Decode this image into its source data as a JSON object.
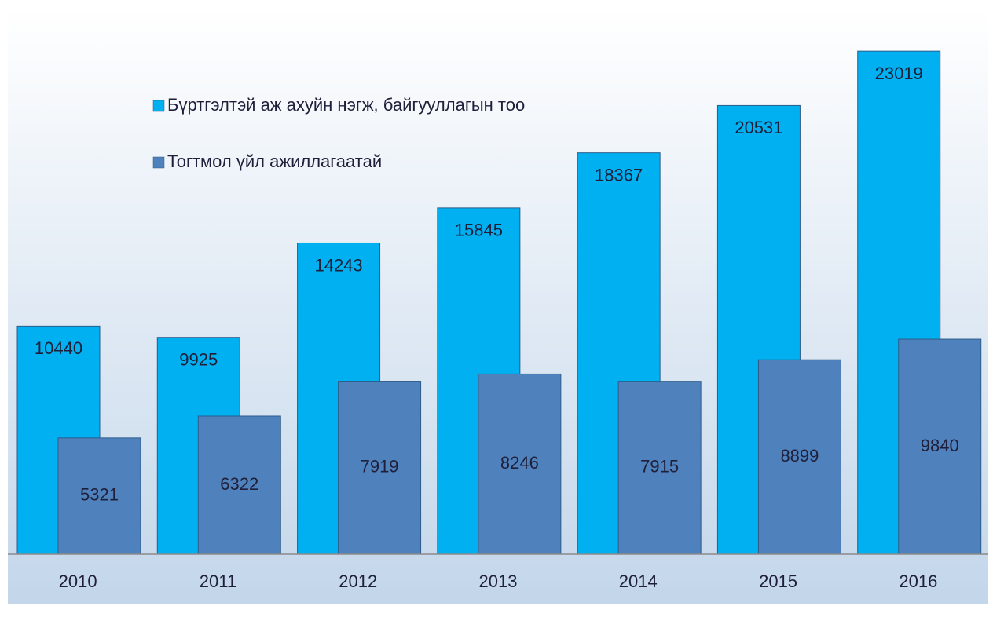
{
  "chart_data": {
    "type": "bar",
    "categories": [
      "2010",
      "2011",
      "2012",
      "2013",
      "2014",
      "2015",
      "2016"
    ],
    "series": [
      {
        "name": "Бүртгэлтэй аж ахуйн нэгж, байгууллагын тоо",
        "color": "#00b0f0",
        "values": [
          10440,
          9925,
          14243,
          15845,
          18367,
          20531,
          23019
        ]
      },
      {
        "name": "Тогтмол үйл ажиллагаатай",
        "color": "#4f81bd",
        "values": [
          5321,
          6322,
          7919,
          8246,
          7915,
          8899,
          9840
        ]
      }
    ],
    "ylim": [
      0,
      25000
    ]
  }
}
